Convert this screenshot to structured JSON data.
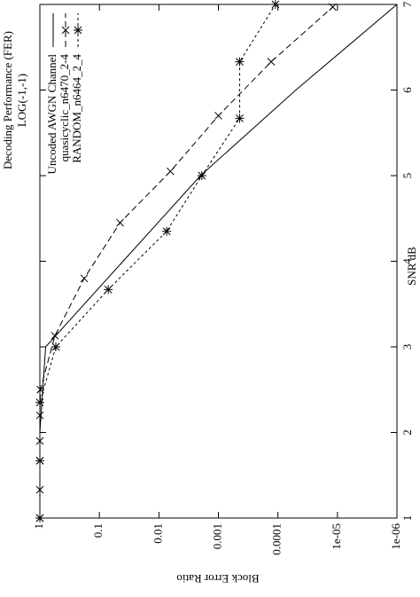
{
  "chart_data": {
    "type": "line",
    "title": "Decoding Performance (FER)",
    "subtitle": "LOG(-1,-1)",
    "x_label": "SNR dB",
    "y_label": "Block Error Ratio",
    "log_y": true,
    "legend": "upper right",
    "xlim": [
      1,
      7
    ],
    "xticks": [
      1,
      2,
      3,
      4,
      5,
      6,
      7
    ],
    "ylim": [
      1,
      1e-06
    ],
    "yticks": [
      1,
      0.1,
      0.01,
      0.001,
      0.0001,
      {
        "value": 1e-05,
        "label": "1e-05"
      },
      {
        "value": 1e-06,
        "label": "1e-06"
      }
    ],
    "series": [
      {
        "name": "Uncoded AWGN Channel",
        "color": "#000000",
        "style": "solid",
        "marker": "none",
        "x": [
          1,
          2,
          3,
          4,
          5,
          6,
          7
        ],
        "values": [
          1,
          1,
          0.8,
          0.04,
          0.002,
          5e-05,
          1e-06
        ]
      },
      {
        "name": "quasicyclic_n6470_2-4",
        "color": "#000000",
        "style": "dashed",
        "marker": "x",
        "x": [
          1,
          1.33,
          1.67,
          1.9,
          2.2,
          2.5,
          3.13,
          3.8,
          4.45,
          5.05,
          5.7,
          6.33,
          6.97
        ],
        "values": [
          1,
          1,
          1,
          1,
          1,
          0.98,
          0.56,
          0.18,
          0.045,
          0.0064,
          0.001,
          0.00013,
          1.2e-05
        ]
      },
      {
        "name": "RANDOM_n6464_2_4",
        "color": "#000000",
        "style": "dotted",
        "marker": "star",
        "x": [
          1,
          1.67,
          2.35,
          3.0,
          3.67,
          4.35,
          5.0,
          5.67,
          6.33,
          7.0
        ],
        "values": [
          1,
          1,
          1,
          0.54,
          0.071,
          0.0074,
          0.0019,
          0.00044,
          0.00044,
          0.00011
        ]
      }
    ]
  }
}
